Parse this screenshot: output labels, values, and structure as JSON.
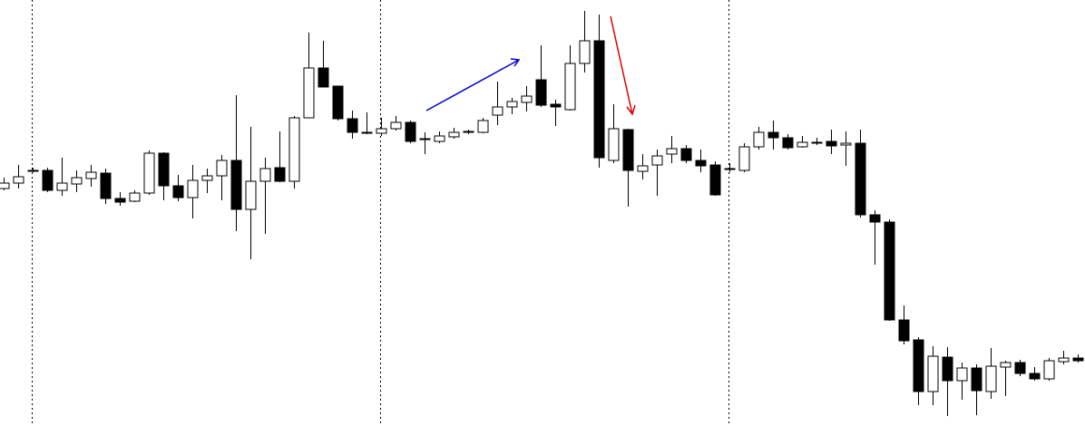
{
  "chart_data": {
    "type": "candlestick",
    "ylim": [
      0,
      470
    ],
    "up_color": "#ffffff",
    "down_color": "#000000",
    "edge_color": "#000000",
    "open": [
      262,
      268,
      282,
      282,
      260,
      267,
      273,
      279,
      251,
      248,
      257,
      301,
      265,
      252,
      271,
      276,
      293,
      239,
      270,
      285,
      270,
      340,
      395,
      375,
      339,
      324,
      323,
      328,
      335,
      316,
      314,
      319,
      324,
      324,
      343,
      352,
      357,
      382,
      355,
      349,
      400,
      425,
      293,
      327,
      281,
      288,
      300,
      306,
      293,
      288,
      284,
      282,
      308,
      324,
      318,
      308,
      313,
      314,
      310,
      312,
      233,
      225,
      117,
      95,
      38,
      76,
      50,
      64,
      38,
      65,
      70,
      58,
      52,
      71,
      75
    ],
    "high": [
      274,
      288,
      285,
      285,
      296,
      282,
      288,
      284,
      258,
      260,
      304,
      302,
      277,
      288,
      284,
      299,
      365,
      330,
      296,
      325,
      342,
      434,
      425,
      375,
      348,
      346,
      340,
      342,
      337,
      324,
      325,
      329,
      327,
      340,
      380,
      362,
      375,
      420,
      360,
      420,
      458,
      454,
      355,
      328,
      300,
      305,
      320,
      310,
      305,
      292,
      290,
      312,
      330,
      337,
      322,
      320,
      318,
      327,
      325,
      327,
      238,
      228,
      133,
      98,
      88,
      87,
      70,
      68,
      86,
      72,
      73,
      65,
      75,
      83,
      79
    ],
    "low": [
      260,
      262,
      280,
      258,
      254,
      258,
      264,
      245,
      243,
      247,
      255,
      249,
      248,
      229,
      257,
      249,
      215,
      184,
      212,
      269,
      262,
      340,
      374,
      337,
      317,
      322,
      320,
      326,
      312,
      300,
      312,
      317,
      322,
      323,
      332,
      344,
      347,
      352,
      331,
      348,
      390,
      285,
      290,
      242,
      272,
      254,
      290,
      290,
      280,
      254,
      280,
      280,
      305,
      305,
      305,
      307,
      310,
      300,
      287,
      230,
      178,
      116,
      90,
      23,
      23,
      11,
      29,
      12,
      30,
      33,
      55,
      50,
      50,
      68,
      70
    ],
    "close": [
      268,
      275,
      281,
      260,
      268,
      274,
      280,
      251,
      247,
      257,
      301,
      265,
      252,
      271,
      276,
      293,
      239,
      270,
      284,
      270,
      340,
      395,
      374,
      339,
      324,
      323,
      328,
      335,
      314,
      317,
      320,
      324,
      325,
      337,
      352,
      358,
      364,
      354,
      352,
      400,
      425,
      296,
      328,
      282,
      287,
      298,
      306,
      293,
      287,
      255,
      283,
      308,
      324,
      318,
      307,
      313,
      312,
      309,
      312,
      233,
      225,
      117,
      94,
      38,
      77,
      50,
      64,
      39,
      66,
      70,
      58,
      52,
      72,
      75,
      72
    ]
  }
}
